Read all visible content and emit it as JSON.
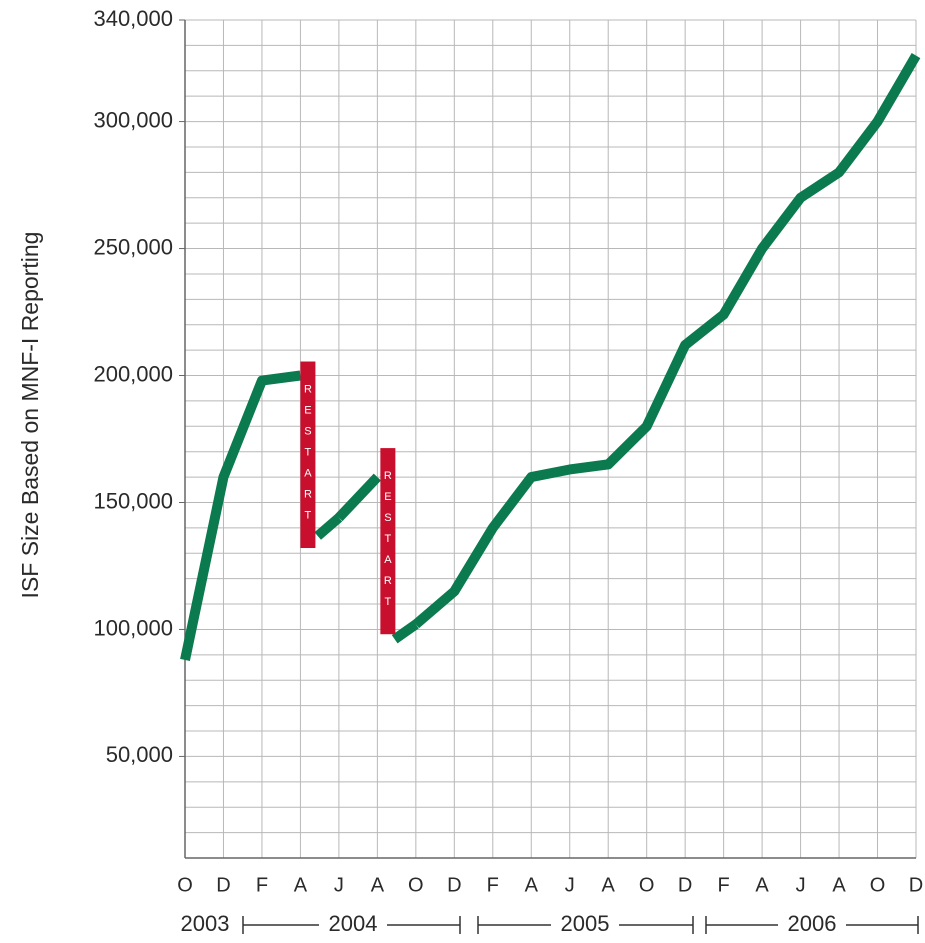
{
  "chart_data": {
    "type": "line",
    "y_label": "ISF Size Based on MNF-I Reporting",
    "categories": [
      "O",
      "D",
      "F",
      "A",
      "J",
      "A",
      "O",
      "D",
      "F",
      "A",
      "J",
      "A",
      "O",
      "D",
      "F",
      "A",
      "J",
      "A",
      "O",
      "D"
    ],
    "series": [
      {
        "name": "ISF Size",
        "color": "#0b7a4f",
        "values": [
          88000,
          160000,
          198000,
          200000,
          144000,
          160000,
          102000,
          115000,
          140000,
          160000,
          163000,
          165000,
          180000,
          212000,
          224000,
          250000,
          270000,
          280000,
          300000,
          326000
        ]
      }
    ],
    "annotations": [
      {
        "text": "RESTART",
        "index": 3
      },
      {
        "text": "RESTART",
        "index": 5
      }
    ],
    "years": [
      "2003",
      "2004",
      "2005",
      "2006"
    ],
    "ylim": [
      10000,
      340000
    ],
    "yticks": [
      {
        "value": 50000,
        "label": "50,000"
      },
      {
        "value": 100000,
        "label": "100,000"
      },
      {
        "value": 150000,
        "label": "150,000"
      },
      {
        "value": 200000,
        "label": "200,000"
      },
      {
        "value": 250000,
        "label": "250,000"
      },
      {
        "value": 300000,
        "label": "300,000"
      },
      {
        "value": 340000,
        "label": "340,000"
      }
    ],
    "minor_yticks": [
      10000,
      20000,
      30000,
      40000,
      50000,
      60000,
      70000,
      80000,
      90000,
      100000,
      110000,
      120000,
      130000,
      140000,
      150000,
      160000,
      170000,
      180000,
      190000,
      200000,
      210000,
      220000,
      230000,
      240000,
      250000,
      260000,
      270000,
      280000,
      290000,
      300000,
      310000,
      320000,
      330000,
      340000
    ],
    "grid": true
  }
}
